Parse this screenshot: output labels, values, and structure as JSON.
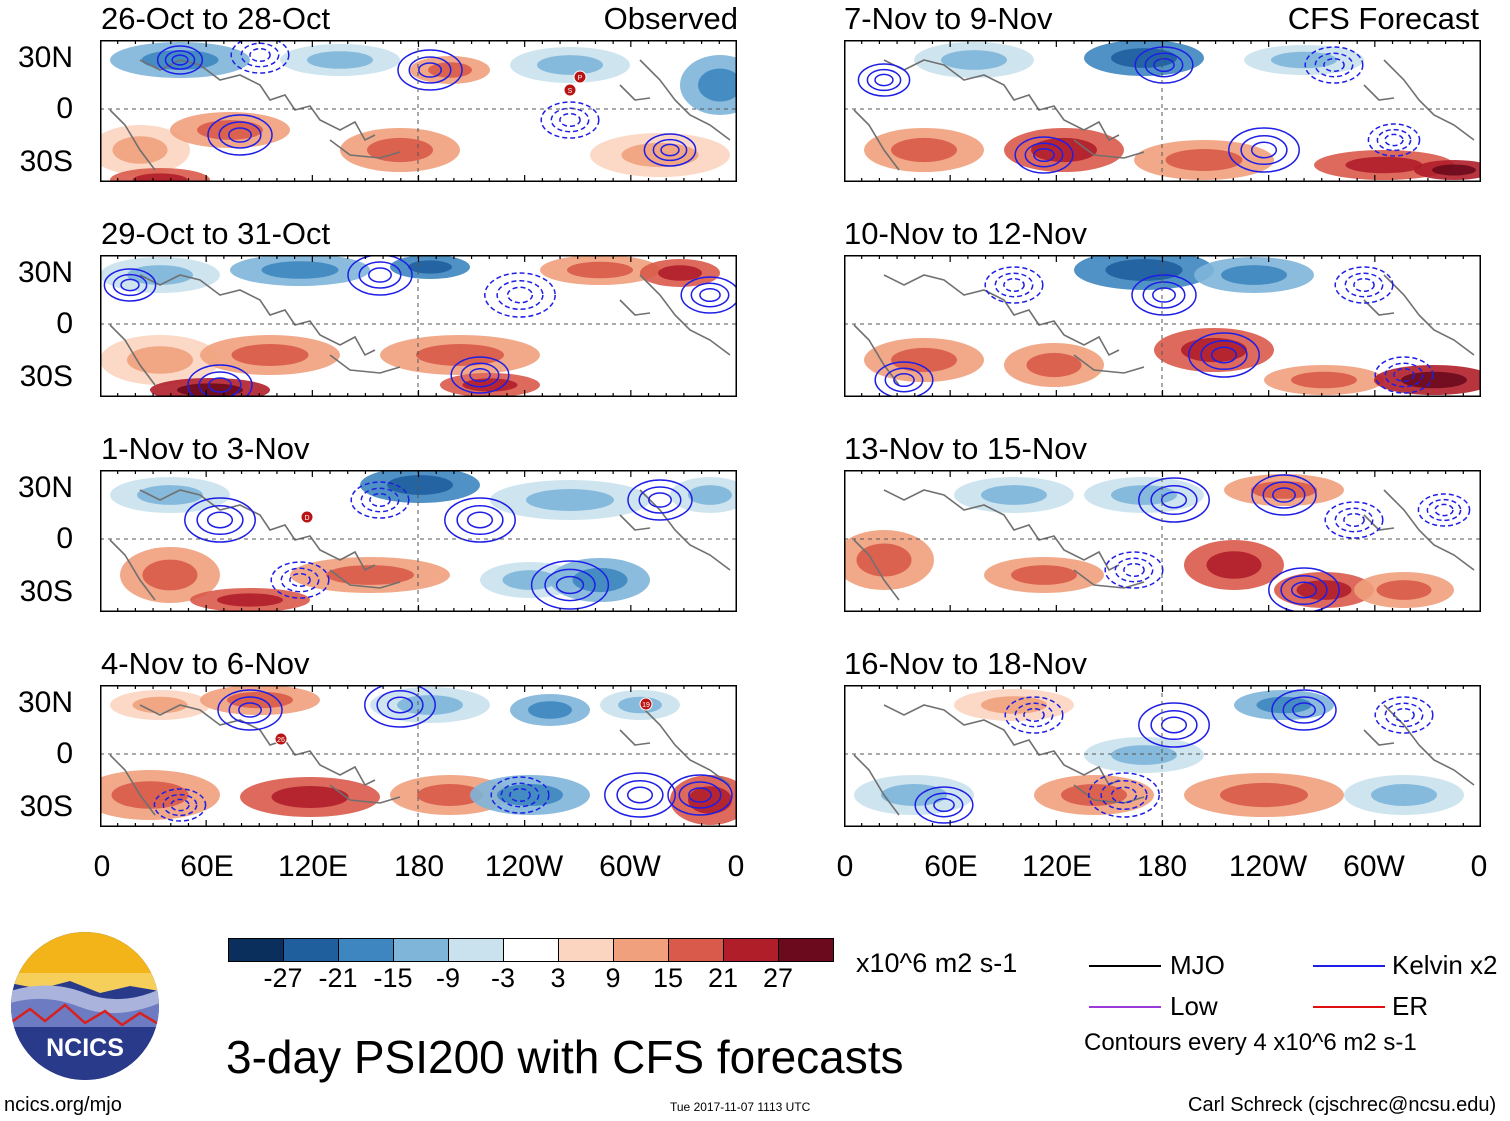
{
  "panels_left": [
    {
      "title": "26-Oct to 28-Oct",
      "tag": "Observed"
    },
    {
      "title": "29-Oct to 31-Oct",
      "tag": ""
    },
    {
      "title": "1-Nov to 3-Nov",
      "tag": ""
    },
    {
      "title": "4-Nov to 6-Nov",
      "tag": ""
    }
  ],
  "panels_right": [
    {
      "title": "7-Nov to 9-Nov",
      "tag": "CFS Forecast"
    },
    {
      "title": "10-Nov to 12-Nov",
      "tag": ""
    },
    {
      "title": "13-Nov to 15-Nov",
      "tag": ""
    },
    {
      "title": "16-Nov to 18-Nov",
      "tag": ""
    }
  ],
  "lat_labels": [
    "30N",
    "0",
    "30S"
  ],
  "lon_labels": [
    "0",
    "60E",
    "120E",
    "180",
    "120W",
    "60W",
    "0"
  ],
  "colorbar": {
    "ticks": [
      "-27",
      "-21",
      "-15",
      "-9",
      "-3",
      "3",
      "9",
      "15",
      "21",
      "27"
    ],
    "colors": [
      "#0b2f5c",
      "#1f5f9e",
      "#3d86bf",
      "#7eb5d9",
      "#c9e2ee",
      "#ffffff",
      "#fbd5c0",
      "#f0a07c",
      "#d95a4a",
      "#b01e2a",
      "#6a0a1c"
    ],
    "units": "x10^6 m2 s-1"
  },
  "legend": {
    "items": [
      {
        "label": "MJO",
        "color": "#000000"
      },
      {
        "label": "Kelvin x2",
        "color": "#1e1ee6"
      },
      {
        "label": "Low",
        "color": "#9a3ad8"
      },
      {
        "label": "ER",
        "color": "#e01010"
      }
    ],
    "contour_note": "Contours every 4 x10^6 m2 s-1"
  },
  "main_title": "3-day PSI200 with CFS forecasts",
  "logo_text": "NCICS",
  "footer": {
    "left": "ncics.org/mjo",
    "center": "Tue 2017-11-07 1113 UTC",
    "right": "Carl Schreck (cjschrec@ncsu.edu)"
  },
  "storm_markers": [
    {
      "panel": "left-0",
      "label": "P"
    },
    {
      "panel": "left-0",
      "label": "S"
    },
    {
      "panel": "left-2",
      "label": "D"
    },
    {
      "panel": "left-3",
      "label": "26"
    },
    {
      "panel": "left-3",
      "label": "19"
    }
  ]
}
